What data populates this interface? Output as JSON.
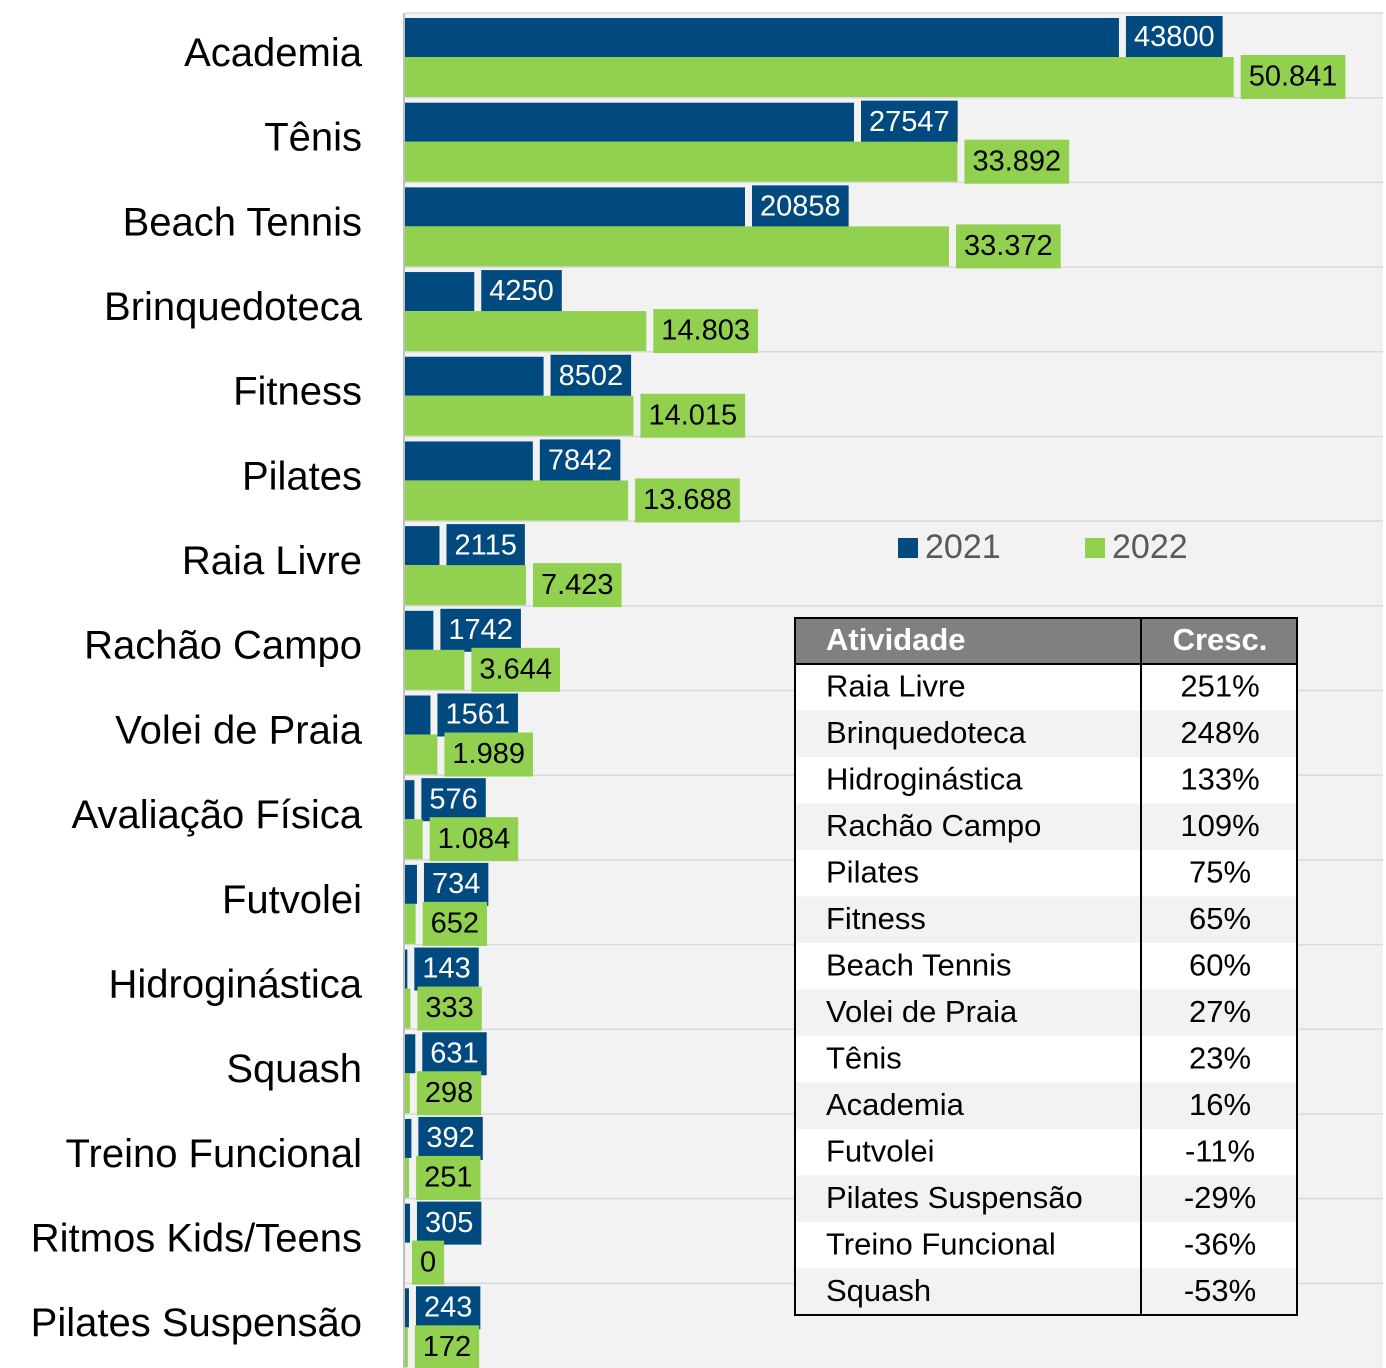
{
  "chart_data": {
    "type": "bar",
    "orientation": "horizontal",
    "categories": [
      "Academia",
      "Tênis",
      "Beach Tennis",
      "Brinquedoteca",
      "Fitness",
      "Pilates",
      "Raia Livre",
      "Rachão Campo",
      "Volei de Praia",
      "Avaliação Física",
      "Futvolei",
      "Hidroginástica",
      "Squash",
      "Treino Funcional",
      "Ritmos Kids/Teens",
      "Pilates Suspensão"
    ],
    "series": [
      {
        "name": "2021",
        "color": "#004a7f",
        "label_text_color": "#ffffff",
        "values": [
          43800,
          27547,
          20858,
          4250,
          8502,
          7842,
          2115,
          1742,
          1561,
          576,
          734,
          143,
          631,
          392,
          305,
          243
        ]
      },
      {
        "name": "2022",
        "color": "#92d050",
        "label_text_color": "#000000",
        "values": [
          50841,
          33892,
          33372,
          14803,
          14015,
          13688,
          7423,
          3644,
          1989,
          1084,
          652,
          333,
          298,
          251,
          0,
          172
        ],
        "value_labels": [
          "50.841",
          "33.892",
          "33.372",
          "14.803",
          "14.015",
          "13.688",
          "7.423",
          "3.644",
          "1.989",
          "1.084",
          "652",
          "333",
          "298",
          "251",
          "0",
          "172"
        ]
      }
    ],
    "xlim": [
      0,
      60000
    ],
    "grid": true,
    "table": {
      "columns": [
        "Atividade",
        "Cresc."
      ],
      "rows": [
        [
          "Raia Livre",
          "251%"
        ],
        [
          "Brinquedoteca",
          "248%"
        ],
        [
          "Hidroginástica",
          "133%"
        ],
        [
          "Rachão Campo",
          "109%"
        ],
        [
          "Pilates",
          "75%"
        ],
        [
          "Fitness",
          "65%"
        ],
        [
          "Beach Tennis",
          "60%"
        ],
        [
          "Volei de Praia",
          "27%"
        ],
        [
          "Tênis",
          "23%"
        ],
        [
          "Academia",
          "16%"
        ],
        [
          "Futvolei",
          "-11%"
        ],
        [
          "Pilates Suspensão",
          "-29%"
        ],
        [
          "Treino Funcional",
          "-36%"
        ],
        [
          "Squash",
          "-53%"
        ]
      ]
    }
  }
}
